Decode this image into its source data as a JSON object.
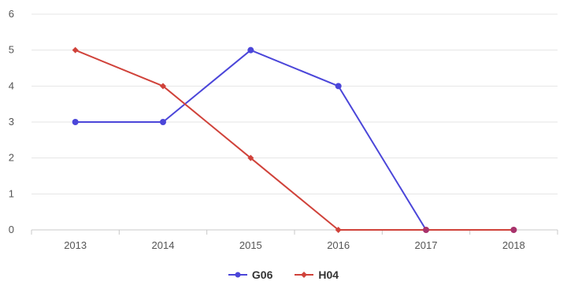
{
  "chart_data": {
    "type": "line",
    "categories": [
      "2013",
      "2014",
      "2015",
      "2016",
      "2017",
      "2018"
    ],
    "series": [
      {
        "name": "G06",
        "values": [
          3,
          3,
          5,
          4,
          0,
          0
        ],
        "color": "#4b46d9",
        "marker": "circle"
      },
      {
        "name": "H04",
        "values": [
          5,
          4,
          2,
          0,
          0,
          0
        ],
        "color": "#d0423a",
        "marker": "diamond"
      }
    ],
    "ylim": [
      0,
      6
    ],
    "yticks": [
      "0",
      "1",
      "2",
      "3",
      "4",
      "5",
      "6"
    ],
    "grid": true,
    "legend_position": "bottom",
    "overlap_marker_color": "#a8336c"
  }
}
